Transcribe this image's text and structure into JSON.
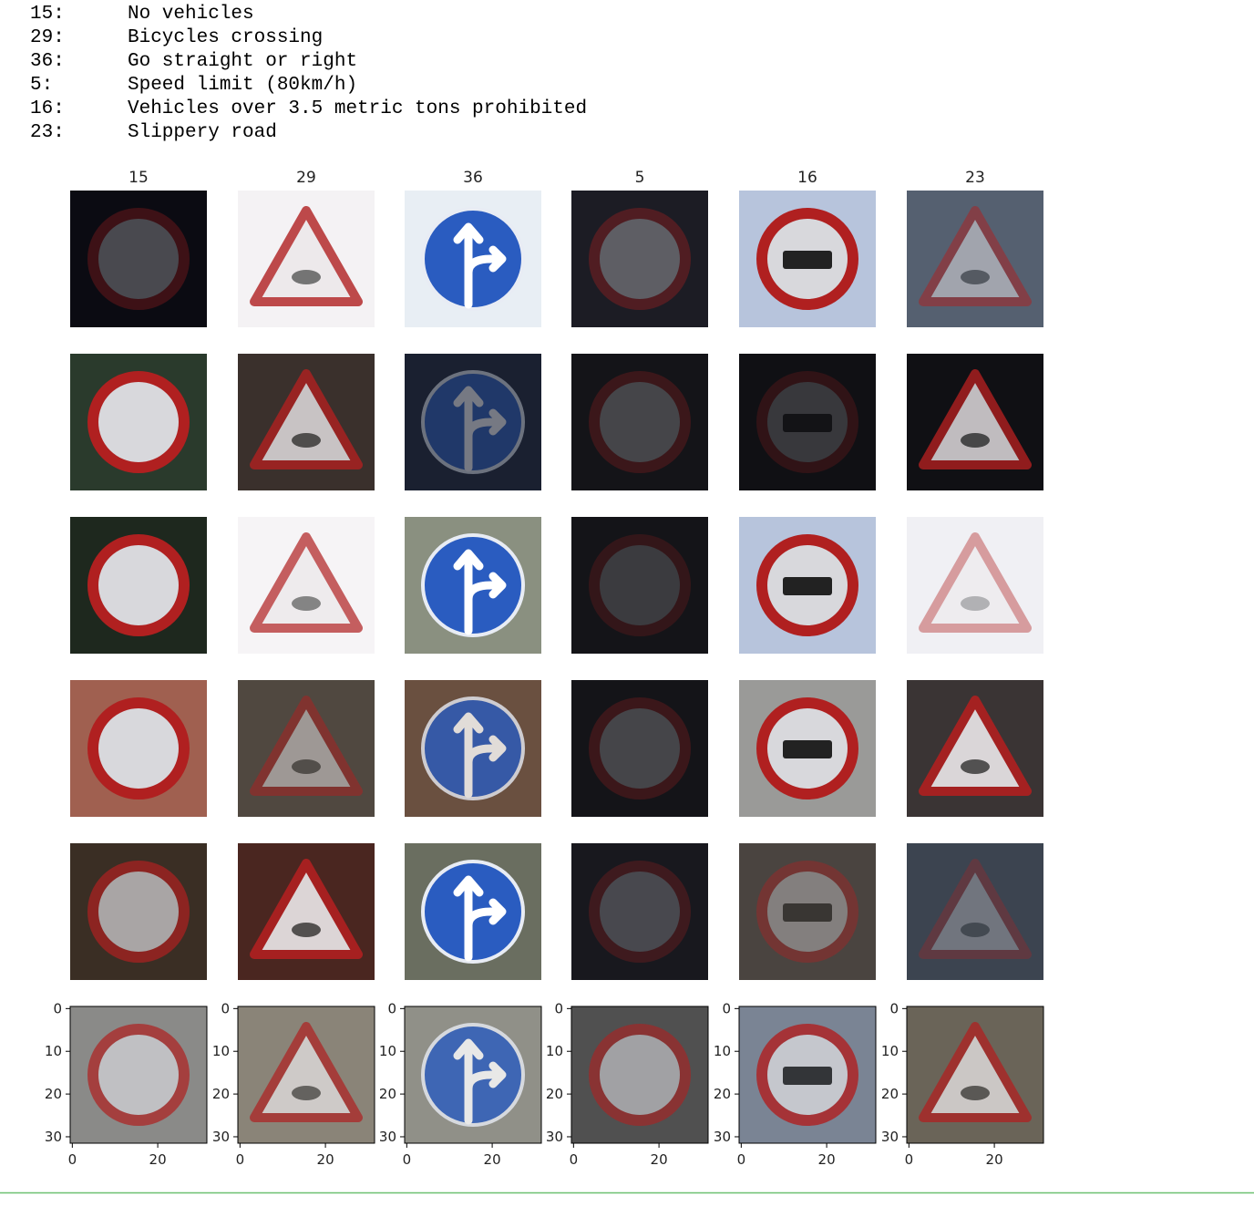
{
  "output_lines": [
    {
      "class_id": "15:",
      "name": "No vehicles"
    },
    {
      "class_id": "29:",
      "name": "Bicycles crossing"
    },
    {
      "class_id": "36:",
      "name": "Go straight or right"
    },
    {
      "class_id": "5:",
      "name": "Speed limit (80km/h)"
    },
    {
      "class_id": "16:",
      "name": "Vehicles over 3.5 metric tons prohibited"
    },
    {
      "class_id": "23:",
      "name": "Slippery road"
    }
  ],
  "grid": {
    "column_titles": [
      "15",
      "29",
      "36",
      "5",
      "16",
      "23"
    ],
    "xlim": [
      -0.5,
      31.5
    ],
    "ylim": [
      31.5,
      -0.5
    ],
    "xticks": [
      0,
      20
    ],
    "yticks": [
      0,
      10,
      20,
      30
    ]
  }
}
